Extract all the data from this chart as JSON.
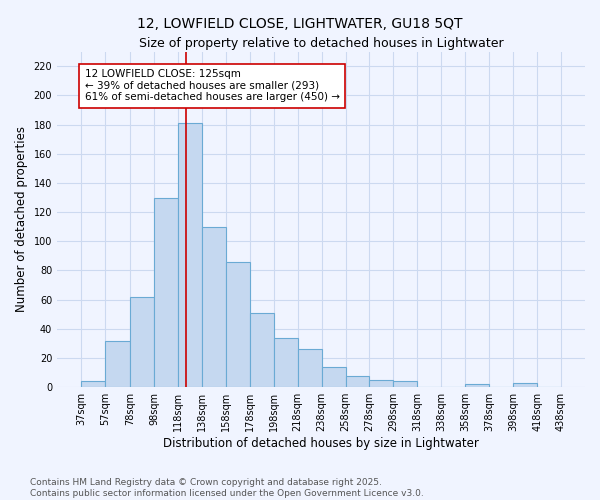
{
  "title": "12, LOWFIELD CLOSE, LIGHTWATER, GU18 5QT",
  "subtitle": "Size of property relative to detached houses in Lightwater",
  "xlabel": "Distribution of detached houses by size in Lightwater",
  "ylabel": "Number of detached properties",
  "bins": [
    37,
    57,
    78,
    98,
    118,
    138,
    158,
    178,
    198,
    218,
    238,
    258,
    278,
    298,
    318,
    338,
    358,
    378,
    398,
    418,
    438
  ],
  "values": [
    4,
    32,
    62,
    130,
    181,
    110,
    86,
    51,
    34,
    26,
    14,
    8,
    5,
    4,
    0,
    0,
    2,
    0,
    3,
    0
  ],
  "bar_color": "#c5d8f0",
  "bar_edge_color": "#6aaad4",
  "bg_color": "#f0f4ff",
  "grid_color": "#ccd9f0",
  "vline_x": 125,
  "vline_color": "#cc0000",
  "annotation_text": "12 LOWFIELD CLOSE: 125sqm\n← 39% of detached houses are smaller (293)\n61% of semi-detached houses are larger (450) →",
  "annotation_box_color": "#ffffff",
  "annotation_box_edge_color": "#cc0000",
  "yticks": [
    0,
    20,
    40,
    60,
    80,
    100,
    120,
    140,
    160,
    180,
    200,
    220
  ],
  "ylim": [
    0,
    230
  ],
  "tick_labels": [
    "37sqm",
    "57sqm",
    "78sqm",
    "98sqm",
    "118sqm",
    "138sqm",
    "158sqm",
    "178sqm",
    "198sqm",
    "218sqm",
    "238sqm",
    "258sqm",
    "278sqm",
    "298sqm",
    "318sqm",
    "338sqm",
    "358sqm",
    "378sqm",
    "398sqm",
    "418sqm",
    "438sqm"
  ],
  "footer": "Contains HM Land Registry data © Crown copyright and database right 2025.\nContains public sector information licensed under the Open Government Licence v3.0.",
  "title_fontsize": 10,
  "subtitle_fontsize": 9,
  "xlabel_fontsize": 8.5,
  "ylabel_fontsize": 8.5,
  "tick_fontsize": 7,
  "annotation_fontsize": 7.5,
  "footer_fontsize": 6.5
}
